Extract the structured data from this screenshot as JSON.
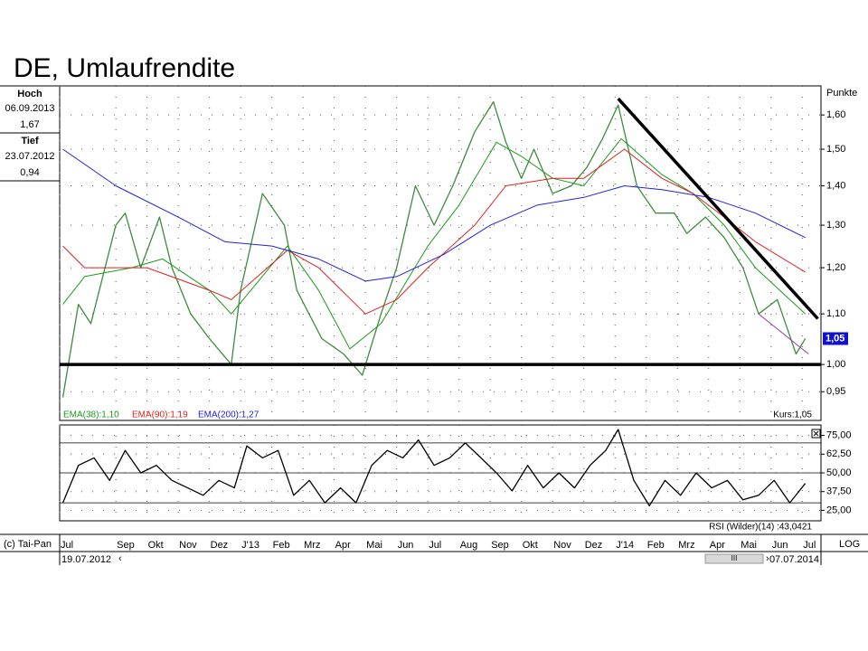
{
  "title": "DE, Umlaufrendite",
  "info": {
    "high_label": "Hoch",
    "high_date": "06.09.2013",
    "high_value": "1,67",
    "low_label": "Tief",
    "low_date": "23.07.2012",
    "low_value": "0,94"
  },
  "footer": {
    "copyright": "(c) Tai-Pan",
    "scale": "LOG",
    "start": "19.07.2012",
    "end": "07.07.2014"
  },
  "chart_data": [
    {
      "type": "line",
      "log_scale": true,
      "grid": true,
      "y_axis_label": "Punkte",
      "xlim": [
        0.2,
        24.6
      ],
      "xticks": [
        {
          "value": 0.2,
          "label": "Jul"
        },
        {
          "value": 2,
          "label": "Sep"
        },
        {
          "value": 3,
          "label": "Okt"
        },
        {
          "value": 4,
          "label": "Nov"
        },
        {
          "value": 5,
          "label": "Dez"
        },
        {
          "value": 6,
          "label": "J'13"
        },
        {
          "value": 7,
          "label": "Feb"
        },
        {
          "value": 8,
          "label": "Mrz"
        },
        {
          "value": 9,
          "label": "Apr"
        },
        {
          "value": 10,
          "label": "Mai"
        },
        {
          "value": 11,
          "label": "Jun"
        },
        {
          "value": 12,
          "label": "Jul"
        },
        {
          "value": 13,
          "label": "Aug"
        },
        {
          "value": 14,
          "label": "Sep"
        },
        {
          "value": 15,
          "label": "Okt"
        },
        {
          "value": 16,
          "label": "Nov"
        },
        {
          "value": 17,
          "label": "Dez"
        },
        {
          "value": 18,
          "label": "J'14"
        },
        {
          "value": 19,
          "label": "Feb"
        },
        {
          "value": 20,
          "label": "Mrz"
        },
        {
          "value": 21,
          "label": "Apr"
        },
        {
          "value": 22,
          "label": "Mai"
        },
        {
          "value": 23,
          "label": "Jun"
        },
        {
          "value": 24,
          "label": "Jul"
        }
      ],
      "ylim": [
        0.9,
        1.69
      ],
      "yticks": [
        {
          "value": 0.95,
          "label": "0,95"
        },
        {
          "value": 1.0,
          "label": "1,00"
        },
        {
          "value": 1.1,
          "label": "1,10"
        },
        {
          "value": 1.2,
          "label": "1,20"
        },
        {
          "value": 1.3,
          "label": "1,30"
        },
        {
          "value": 1.4,
          "label": "1,40"
        },
        {
          "value": 1.5,
          "label": "1,50"
        },
        {
          "value": 1.6,
          "label": "1,60"
        }
      ],
      "series": [
        {
          "name": "Kurs:1,05",
          "color": "#3c8c3c",
          "x": [
            0.3,
            0.8,
            1.2,
            2,
            2.3,
            2.8,
            3.4,
            3.8,
            4.4,
            5,
            5.7,
            6,
            6.7,
            7.4,
            7.8,
            8.6,
            9.3,
            9.9,
            10.5,
            11,
            11.6,
            12.2,
            12.8,
            13.5,
            14.1,
            14.5,
            15,
            15.4,
            16,
            16.6,
            17.1,
            17.6,
            18.1,
            18.7,
            19.3,
            19.9,
            20.3,
            20.9,
            21.5,
            22.1,
            22.6,
            23.2,
            23.8,
            24.1
          ],
          "values": [
            0.94,
            1.12,
            1.08,
            1.3,
            1.33,
            1.2,
            1.32,
            1.2,
            1.1,
            1.05,
            1.0,
            1.15,
            1.38,
            1.3,
            1.15,
            1.05,
            1.02,
            0.98,
            1.1,
            1.2,
            1.4,
            1.3,
            1.4,
            1.55,
            1.64,
            1.52,
            1.42,
            1.5,
            1.38,
            1.4,
            1.45,
            1.53,
            1.63,
            1.4,
            1.33,
            1.33,
            1.28,
            1.32,
            1.27,
            1.2,
            1.1,
            1.13,
            1.02,
            1.05
          ]
        },
        {
          "name": "EMA(38):1,10",
          "color": "#1a9a1a",
          "x": [
            0.3,
            1,
            2.5,
            3.5,
            5,
            5.7,
            7.5,
            8.5,
            9.5,
            10.5,
            12,
            13,
            14.2,
            15,
            16,
            17,
            18.2,
            19.5,
            20.5,
            21.5,
            22.5,
            24.1
          ],
          "values": [
            1.12,
            1.18,
            1.2,
            1.22,
            1.15,
            1.1,
            1.25,
            1.15,
            1.03,
            1.08,
            1.25,
            1.35,
            1.52,
            1.48,
            1.42,
            1.4,
            1.53,
            1.43,
            1.38,
            1.3,
            1.2,
            1.1
          ]
        },
        {
          "name": "EMA(90):1,19",
          "color": "#e02020",
          "x": [
            0.3,
            1,
            3,
            5,
            5.7,
            7.5,
            8.5,
            10,
            11,
            12,
            13.5,
            14.5,
            16,
            17,
            18.3,
            19.5,
            20.5,
            21.5,
            22.5,
            24.1
          ],
          "values": [
            1.25,
            1.2,
            1.2,
            1.15,
            1.13,
            1.24,
            1.2,
            1.1,
            1.13,
            1.2,
            1.3,
            1.4,
            1.42,
            1.42,
            1.5,
            1.42,
            1.38,
            1.32,
            1.26,
            1.19
          ]
        },
        {
          "name": "EMA(200):1,27",
          "color": "#2020e0",
          "x": [
            0.3,
            2,
            4,
            5.5,
            7,
            8.5,
            10,
            11,
            12.5,
            14,
            15.5,
            17,
            18.3,
            19.5,
            21,
            22.5,
            24.1
          ],
          "values": [
            1.5,
            1.4,
            1.32,
            1.26,
            1.25,
            1.22,
            1.17,
            1.18,
            1.23,
            1.3,
            1.35,
            1.37,
            1.4,
            1.39,
            1.37,
            1.33,
            1.27
          ]
        }
      ],
      "trendlines": [
        {
          "color": "#000000",
          "x": [
            0.2,
            24.6
          ],
          "values": [
            1.0,
            1.0
          ]
        },
        {
          "color": "#000000",
          "x": [
            18.1,
            24.5
          ],
          "values": [
            1.65,
            1.09
          ]
        },
        {
          "color": "#a040a0",
          "x": [
            22.6,
            24.2
          ],
          "values": [
            1.1,
            1.02
          ]
        }
      ],
      "last_value": {
        "value": 1.05,
        "label": "1,05",
        "color": "#1010d0"
      }
    },
    {
      "type": "line",
      "grid": true,
      "title": "RSI (Wilder)(14) :43,0421",
      "xlim": [
        0.2,
        24.6
      ],
      "ylim": [
        18,
        82
      ],
      "yticks": [
        {
          "value": 25,
          "label": "25,00"
        },
        {
          "value": 37.5,
          "label": "37,50"
        },
        {
          "value": 50,
          "label": "50,00"
        },
        {
          "value": 62.5,
          "label": "62,50"
        },
        {
          "value": 75,
          "label": "75,00"
        }
      ],
      "levels": [
        70,
        50,
        30
      ],
      "series": [
        {
          "name": "RSI",
          "color": "#000000",
          "x": [
            0.3,
            0.8,
            1.3,
            1.8,
            2.3,
            2.8,
            3.3,
            3.8,
            4.3,
            4.8,
            5.3,
            5.8,
            6.2,
            6.7,
            7.2,
            7.7,
            8.2,
            8.7,
            9.2,
            9.7,
            10.2,
            10.7,
            11.2,
            11.7,
            12.2,
            12.7,
            13.2,
            13.7,
            14.2,
            14.7,
            15.2,
            15.7,
            16.2,
            16.7,
            17.2,
            17.7,
            18.1,
            18.6,
            19.1,
            19.6,
            20.1,
            20.6,
            21.1,
            21.6,
            22.1,
            22.6,
            23.1,
            23.6,
            24.1
          ],
          "values": [
            30,
            55,
            60,
            45,
            65,
            50,
            55,
            45,
            40,
            35,
            45,
            40,
            68,
            60,
            65,
            35,
            45,
            30,
            40,
            30,
            55,
            65,
            60,
            72,
            55,
            60,
            70,
            60,
            50,
            38,
            55,
            40,
            50,
            40,
            55,
            65,
            79,
            45,
            28,
            45,
            35,
            50,
            40,
            45,
            32,
            35,
            45,
            30,
            43
          ]
        }
      ]
    }
  ]
}
